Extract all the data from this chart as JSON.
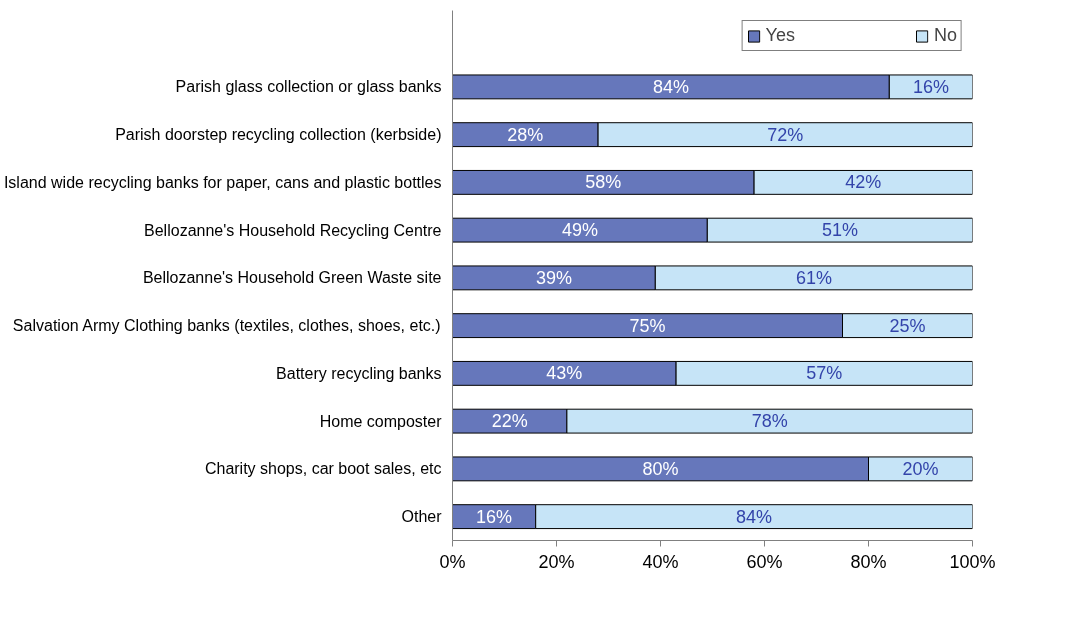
{
  "chart_data": {
    "type": "bar",
    "orientation": "horizontal",
    "stacked": true,
    "categories": [
      "Parish glass collection or glass banks",
      "Parish doorstep recycling collection (kerbside)",
      "Island wide recycling banks for paper, cans and plastic bottles",
      "Bellozanne's Household Recycling Centre",
      "Bellozanne's Household Green Waste site",
      "Salvation Army Clothing banks (textiles, clothes, shoes, etc.)",
      "Battery recycling banks",
      "Home composter",
      "Charity shops, car boot sales, etc",
      "Other"
    ],
    "series": [
      {
        "name": "Yes",
        "color": "#6677bb",
        "values": [
          84,
          28,
          58,
          49,
          39,
          75,
          43,
          22,
          80,
          16
        ],
        "value_labels": [
          "84%",
          "28%",
          "58%",
          "49%",
          "39%",
          "75%",
          "43%",
          "22%",
          "80%",
          "16%"
        ]
      },
      {
        "name": "No",
        "color": "#c6e4f7",
        "values": [
          16,
          72,
          42,
          51,
          61,
          25,
          57,
          78,
          20,
          84
        ],
        "value_labels": [
          "16%",
          "72%",
          "42%",
          "51%",
          "61%",
          "25%",
          "57%",
          "78%",
          "20%",
          "84%"
        ]
      }
    ],
    "xlim": [
      0,
      100
    ],
    "xticks": [
      {
        "value": 0,
        "label": "0%"
      },
      {
        "value": 20,
        "label": "20%"
      },
      {
        "value": 40,
        "label": "40%"
      },
      {
        "value": 60,
        "label": "60%"
      },
      {
        "value": 80,
        "label": "80%"
      },
      {
        "value": 100,
        "label": "100%"
      }
    ],
    "grid": false,
    "legend": "top"
  }
}
